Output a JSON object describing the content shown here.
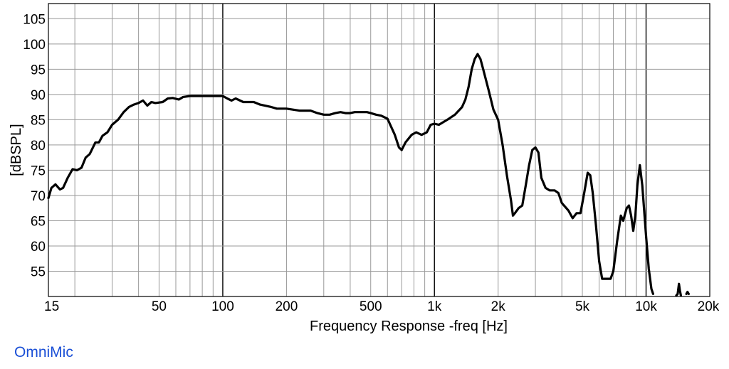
{
  "brand_label": "OmniMic",
  "colors": {
    "curve": "#000000",
    "grid": "#999999",
    "decade_line": "#000000",
    "brand": "#1a4fd6"
  },
  "chart_data": {
    "type": "line",
    "title": "",
    "xlabel": "Frequency Response -freq [Hz]",
    "ylabel": "[dBSPL]",
    "xscale": "log",
    "xlim": [
      15,
      20000
    ],
    "ylim": [
      50,
      108
    ],
    "grid": true,
    "xticks": [
      {
        "v": 15,
        "label": "15"
      },
      {
        "v": 50,
        "label": "50"
      },
      {
        "v": 100,
        "label": "100"
      },
      {
        "v": 200,
        "label": "200"
      },
      {
        "v": 500,
        "label": "500"
      },
      {
        "v": 1000,
        "label": "1k"
      },
      {
        "v": 2000,
        "label": "2k"
      },
      {
        "v": 5000,
        "label": "5k"
      },
      {
        "v": 10000,
        "label": "10k"
      },
      {
        "v": 20000,
        "label": "20k"
      }
    ],
    "yticks": [
      55,
      60,
      65,
      70,
      75,
      80,
      85,
      90,
      95,
      100,
      105
    ],
    "series": [
      {
        "name": "",
        "segments": [
          [
            [
              15,
              69.5
            ],
            [
              15.5,
              71.5
            ],
            [
              16.2,
              72.2
            ],
            [
              17,
              71.2
            ],
            [
              17.6,
              71.5
            ],
            [
              18.5,
              73.5
            ],
            [
              19.5,
              75.2
            ],
            [
              20.5,
              75.0
            ],
            [
              21.5,
              75.5
            ],
            [
              22.5,
              77.5
            ],
            [
              23.5,
              78.2
            ],
            [
              25,
              80.5
            ],
            [
              26,
              80.5
            ],
            [
              27,
              81.8
            ],
            [
              28.5,
              82.5
            ],
            [
              30,
              84.0
            ],
            [
              32,
              85.0
            ],
            [
              34,
              86.5
            ],
            [
              36,
              87.5
            ],
            [
              38,
              88.0
            ],
            [
              40,
              88.3
            ],
            [
              42,
              88.8
            ],
            [
              44,
              87.8
            ],
            [
              46,
              88.5
            ],
            [
              48,
              88.3
            ],
            [
              52,
              88.5
            ],
            [
              55,
              89.2
            ],
            [
              58,
              89.3
            ],
            [
              62,
              89.0
            ],
            [
              65,
              89.5
            ],
            [
              70,
              89.7
            ],
            [
              80,
              89.7
            ],
            [
              90,
              89.7
            ],
            [
              100,
              89.7
            ],
            [
              105,
              89.2
            ],
            [
              110,
              88.8
            ],
            [
              115,
              89.2
            ],
            [
              125,
              88.5
            ],
            [
              140,
              88.5
            ],
            [
              150,
              88.0
            ],
            [
              170,
              87.5
            ],
            [
              180,
              87.2
            ],
            [
              200,
              87.2
            ],
            [
              230,
              86.8
            ],
            [
              260,
              86.8
            ],
            [
              280,
              86.3
            ],
            [
              300,
              86.0
            ],
            [
              320,
              86.0
            ],
            [
              340,
              86.3
            ],
            [
              360,
              86.5
            ],
            [
              380,
              86.3
            ],
            [
              400,
              86.3
            ],
            [
              420,
              86.5
            ],
            [
              450,
              86.5
            ],
            [
              480,
              86.5
            ],
            [
              500,
              86.3
            ],
            [
              530,
              86.0
            ],
            [
              560,
              85.8
            ],
            [
              600,
              85.2
            ],
            [
              650,
              82.0
            ],
            [
              680,
              79.5
            ],
            [
              700,
              79.0
            ],
            [
              730,
              80.5
            ],
            [
              780,
              82.0
            ],
            [
              820,
              82.5
            ],
            [
              870,
              82.0
            ],
            [
              920,
              82.5
            ],
            [
              960,
              84.0
            ],
            [
              1000,
              84.2
            ],
            [
              1050,
              84.0
            ],
            [
              1100,
              84.5
            ],
            [
              1150,
              85.0
            ],
            [
              1250,
              86.0
            ],
            [
              1350,
              87.5
            ],
            [
              1400,
              89.0
            ],
            [
              1450,
              91.5
            ],
            [
              1500,
              95.0
            ],
            [
              1550,
              97.0
            ],
            [
              1600,
              98.0
            ],
            [
              1650,
              97.0
            ],
            [
              1700,
              95.0
            ],
            [
              1800,
              91.0
            ],
            [
              1900,
              87.0
            ],
            [
              2000,
              85.0
            ],
            [
              2100,
              80.0
            ],
            [
              2200,
              74.0
            ],
            [
              2300,
              69.0
            ],
            [
              2350,
              66.0
            ],
            [
              2400,
              66.5
            ],
            [
              2500,
              67.5
            ],
            [
              2600,
              68.0
            ],
            [
              2700,
              72.0
            ],
            [
              2800,
              76.0
            ],
            [
              2900,
              79.0
            ],
            [
              3000,
              79.5
            ],
            [
              3100,
              78.5
            ],
            [
              3200,
              73.5
            ],
            [
              3350,
              71.5
            ],
            [
              3500,
              71.0
            ],
            [
              3700,
              71.0
            ],
            [
              3850,
              70.5
            ],
            [
              4000,
              68.5
            ],
            [
              4300,
              67.0
            ],
            [
              4500,
              65.5
            ],
            [
              4700,
              66.5
            ],
            [
              4900,
              66.5
            ],
            [
              5100,
              70.5
            ],
            [
              5300,
              74.5
            ],
            [
              5450,
              74.0
            ],
            [
              5600,
              70.5
            ],
            [
              5800,
              64.0
            ],
            [
              6000,
              57.0
            ],
            [
              6200,
              53.5
            ],
            [
              6500,
              53.5
            ],
            [
              6800,
              53.5
            ],
            [
              7000,
              55.0
            ],
            [
              7300,
              61.0
            ],
            [
              7600,
              66.0
            ],
            [
              7800,
              65.0
            ],
            [
              8100,
              67.5
            ],
            [
              8300,
              68.0
            ],
            [
              8500,
              66.0
            ],
            [
              8700,
              63.0
            ],
            [
              8900,
              66.0
            ],
            [
              9100,
              72.0
            ],
            [
              9350,
              76.0
            ],
            [
              9600,
              72.0
            ],
            [
              10000,
              62.0
            ],
            [
              10300,
              55.5
            ],
            [
              10600,
              51.5
            ],
            [
              10800,
              50.5
            ]
          ],
          [
            [
              13900,
              50.2
            ],
            [
              14100,
              50.5
            ],
            [
              14300,
              52.5
            ],
            [
              14450,
              51.2
            ],
            [
              14600,
              50.2
            ]
          ],
          [
            [
              15500,
              50.5
            ],
            [
              15700,
              50.9
            ],
            [
              15900,
              50.5
            ]
          ]
        ]
      }
    ]
  }
}
